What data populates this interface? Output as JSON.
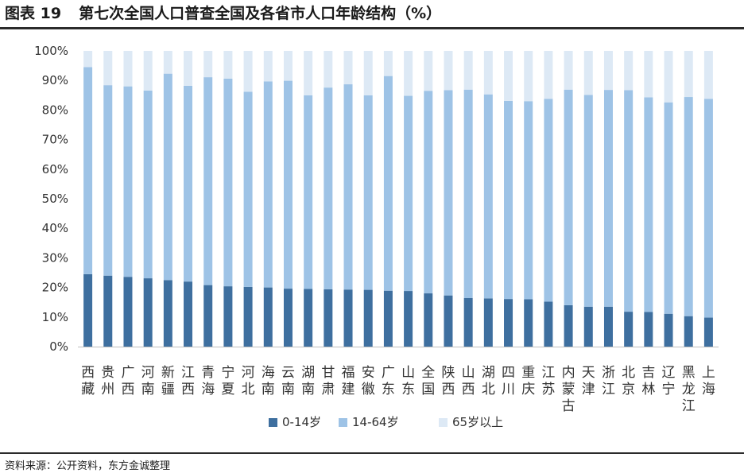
{
  "figure_label": "图表 19",
  "title": "第七次全国人口普查全国及各省市人口年龄结构（%）",
  "source": "资料来源：公开资料，东方金诚整理",
  "colors": {
    "series_0_14": "#3e6f9f",
    "series_14_64": "#9ec3e6",
    "series_65": "#dde9f5",
    "axis": "#bfbfbf"
  },
  "chart_data": {
    "type": "bar",
    "stacked": true,
    "title": "第七次全国人口普查全国及各省市人口年龄结构（%）",
    "xlabel": "",
    "ylabel": "",
    "ylim": [
      0,
      100
    ],
    "yticks": [
      "0%",
      "10%",
      "20%",
      "30%",
      "40%",
      "50%",
      "60%",
      "70%",
      "80%",
      "90%",
      "100%"
    ],
    "grid": false,
    "legend_position": "bottom",
    "categories": [
      "西藏",
      "贵州",
      "广西",
      "河南",
      "新疆",
      "江西",
      "青海",
      "宁夏",
      "河北",
      "海南",
      "云南",
      "湖南",
      "甘肃",
      "福建",
      "安徽",
      "广东",
      "山东",
      "全国",
      "陕西",
      "山西",
      "湖北",
      "四川",
      "重庆",
      "江苏",
      "内蒙古",
      "天津",
      "浙江",
      "北京",
      "吉林",
      "辽宁",
      "黑龙江",
      "上海"
    ],
    "series": [
      {
        "name": "0-14岁",
        "values": [
          24.5,
          24.0,
          23.6,
          23.1,
          22.5,
          22.0,
          20.8,
          20.4,
          20.2,
          20.0,
          19.6,
          19.5,
          19.4,
          19.3,
          19.2,
          18.9,
          18.8,
          18.0,
          17.3,
          16.4,
          16.3,
          16.1,
          16.0,
          15.2,
          14.0,
          13.5,
          13.5,
          11.8,
          11.7,
          11.1,
          10.3,
          9.8
        ]
      },
      {
        "name": "14-64岁",
        "values": [
          70.0,
          64.4,
          64.4,
          63.5,
          69.8,
          66.2,
          70.3,
          70.2,
          66.0,
          69.7,
          70.3,
          65.5,
          68.2,
          69.4,
          65.8,
          72.6,
          66.0,
          68.5,
          69.4,
          70.5,
          69.0,
          67.0,
          67.0,
          68.6,
          72.9,
          71.6,
          73.3,
          74.9,
          72.6,
          71.5,
          74.1,
          74.0
        ]
      },
      {
        "name": "65岁以上",
        "values": [
          5.5,
          11.6,
          12.0,
          13.4,
          7.7,
          11.8,
          8.9,
          9.4,
          13.8,
          10.3,
          10.1,
          15.0,
          12.4,
          11.3,
          15.0,
          8.5,
          15.2,
          13.5,
          13.3,
          13.1,
          14.7,
          16.9,
          17.0,
          16.2,
          13.1,
          14.9,
          13.2,
          13.3,
          15.7,
          17.4,
          15.6,
          16.2
        ]
      }
    ]
  }
}
